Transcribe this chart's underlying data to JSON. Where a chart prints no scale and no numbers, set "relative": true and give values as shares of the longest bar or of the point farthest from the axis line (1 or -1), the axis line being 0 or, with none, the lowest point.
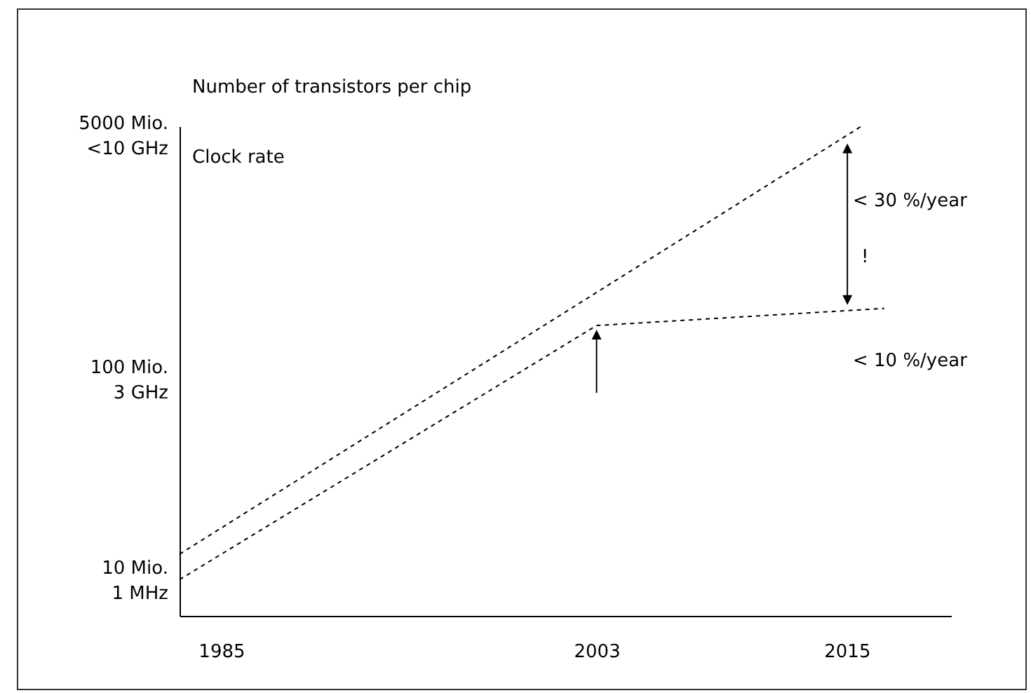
{
  "chart_data": {
    "type": "line",
    "line_style": "dashed",
    "relative": true,
    "xlim": [
      1983,
      2020
    ],
    "xticks": [
      1985,
      2003,
      2015
    ],
    "series": [
      {
        "color": "#000000",
        "x": [
          1983,
          2015.7
        ],
        "values": [
          0.126,
          1
        ]
      },
      {
        "color": "#000000",
        "x": [
          1983,
          2003,
          2016.8
        ],
        "values": [
          0.074,
          0.593,
          0.628
        ]
      }
    ],
    "annotations": [
      "5000 Mio.\n<10 GHz",
      "100 Mio.\n3 GHz",
      "10 Mio.\n1 MHz",
      "Number of transistors per chip",
      "Clock rate",
      "< 30 %/year",
      "!",
      "< 10 %/year"
    ]
  }
}
